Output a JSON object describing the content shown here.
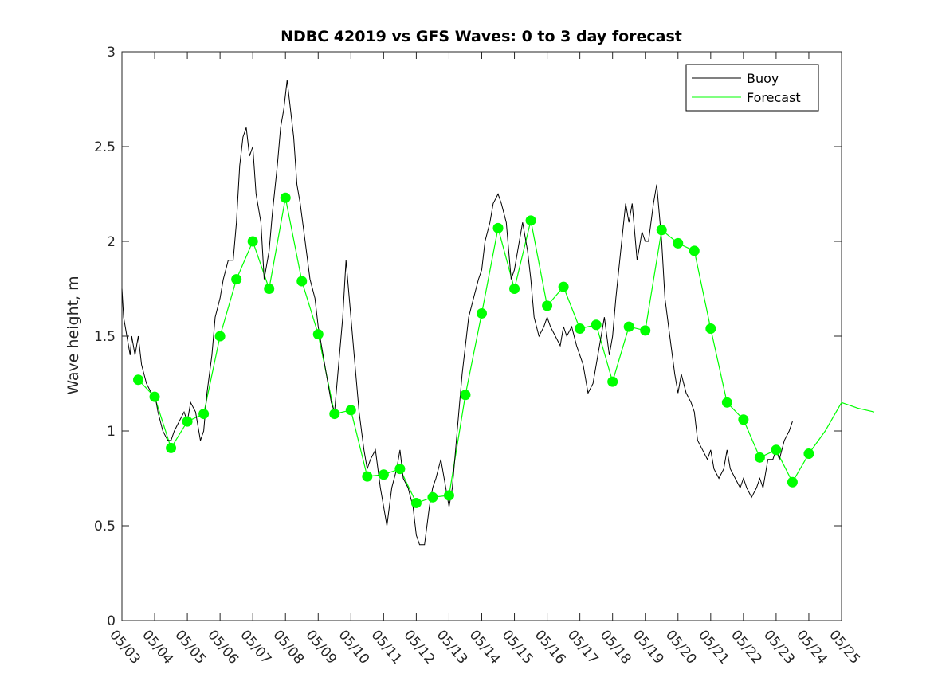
{
  "chart_data": {
    "type": "line",
    "title": "NDBC 42019 vs GFS Waves: 0 to 3 day forecast",
    "xlabel": "",
    "ylabel": "Wave height, m",
    "ylim": [
      0,
      3
    ],
    "yticks": [
      "0",
      "0.5",
      "1",
      "1.5",
      "2",
      "2.5",
      "3"
    ],
    "xticks": [
      "05/03",
      "05/04",
      "05/05",
      "05/06",
      "05/07",
      "05/08",
      "05/09",
      "05/10",
      "05/11",
      "05/12",
      "05/13",
      "05/14",
      "05/15",
      "05/16",
      "05/17",
      "05/18",
      "05/19",
      "05/20",
      "05/21",
      "05/22",
      "05/23",
      "05/24",
      "05/25"
    ],
    "x_unit": "days since 05/03",
    "legend": {
      "position": "top-right",
      "entries": [
        "Buoy",
        "Forecast"
      ]
    },
    "colors": {
      "buoy": "#000000",
      "forecast": "#00ff00"
    },
    "series": [
      {
        "name": "Buoy",
        "points": [
          [
            0,
            1.75
          ],
          [
            0.05,
            1.6
          ],
          [
            0.15,
            1.5
          ],
          [
            0.25,
            1.4
          ],
          [
            0.3,
            1.5
          ],
          [
            0.4,
            1.4
          ],
          [
            0.5,
            1.5
          ],
          [
            0.6,
            1.35
          ],
          [
            0.75,
            1.25
          ],
          [
            0.9,
            1.2
          ],
          [
            1.0,
            1.2
          ],
          [
            1.1,
            1.1
          ],
          [
            1.25,
            1.0
          ],
          [
            1.4,
            0.95
          ],
          [
            1.5,
            0.95
          ],
          [
            1.6,
            1.0
          ],
          [
            1.75,
            1.05
          ],
          [
            1.9,
            1.1
          ],
          [
            2.0,
            1.05
          ],
          [
            2.1,
            1.15
          ],
          [
            2.25,
            1.1
          ],
          [
            2.4,
            0.95
          ],
          [
            2.5,
            1.0
          ],
          [
            2.6,
            1.2
          ],
          [
            2.75,
            1.4
          ],
          [
            2.85,
            1.6
          ],
          [
            3.0,
            1.7
          ],
          [
            3.1,
            1.8
          ],
          [
            3.25,
            1.9
          ],
          [
            3.4,
            1.9
          ],
          [
            3.5,
            2.1
          ],
          [
            3.6,
            2.4
          ],
          [
            3.7,
            2.55
          ],
          [
            3.8,
            2.6
          ],
          [
            3.9,
            2.45
          ],
          [
            4.0,
            2.5
          ],
          [
            4.1,
            2.25
          ],
          [
            4.25,
            2.1
          ],
          [
            4.35,
            1.8
          ],
          [
            4.5,
            1.95
          ],
          [
            4.6,
            2.15
          ],
          [
            4.75,
            2.4
          ],
          [
            4.85,
            2.6
          ],
          [
            4.95,
            2.7
          ],
          [
            5.05,
            2.85
          ],
          [
            5.15,
            2.7
          ],
          [
            5.25,
            2.55
          ],
          [
            5.35,
            2.3
          ],
          [
            5.45,
            2.2
          ],
          [
            5.6,
            2.0
          ],
          [
            5.75,
            1.8
          ],
          [
            5.9,
            1.7
          ],
          [
            6.0,
            1.55
          ],
          [
            6.1,
            1.45
          ],
          [
            6.25,
            1.3
          ],
          [
            6.4,
            1.15
          ],
          [
            6.5,
            1.1
          ],
          [
            6.6,
            1.3
          ],
          [
            6.75,
            1.6
          ],
          [
            6.85,
            1.9
          ],
          [
            6.95,
            1.7
          ],
          [
            7.1,
            1.4
          ],
          [
            7.25,
            1.1
          ],
          [
            7.4,
            0.9
          ],
          [
            7.5,
            0.8
          ],
          [
            7.6,
            0.85
          ],
          [
            7.75,
            0.9
          ],
          [
            7.9,
            0.7
          ],
          [
            8.0,
            0.6
          ],
          [
            8.1,
            0.5
          ],
          [
            8.25,
            0.7
          ],
          [
            8.4,
            0.8
          ],
          [
            8.5,
            0.9
          ],
          [
            8.6,
            0.75
          ],
          [
            8.75,
            0.7
          ],
          [
            8.9,
            0.6
          ],
          [
            9.0,
            0.45
          ],
          [
            9.1,
            0.4
          ],
          [
            9.25,
            0.4
          ],
          [
            9.4,
            0.6
          ],
          [
            9.5,
            0.7
          ],
          [
            9.6,
            0.75
          ],
          [
            9.75,
            0.85
          ],
          [
            9.9,
            0.7
          ],
          [
            10.0,
            0.6
          ],
          [
            10.1,
            0.7
          ],
          [
            10.25,
            1.0
          ],
          [
            10.4,
            1.3
          ],
          [
            10.5,
            1.45
          ],
          [
            10.6,
            1.6
          ],
          [
            10.75,
            1.7
          ],
          [
            10.9,
            1.8
          ],
          [
            11.0,
            1.85
          ],
          [
            11.1,
            2.0
          ],
          [
            11.25,
            2.1
          ],
          [
            11.35,
            2.2
          ],
          [
            11.5,
            2.25
          ],
          [
            11.6,
            2.2
          ],
          [
            11.75,
            2.1
          ],
          [
            11.9,
            1.8
          ],
          [
            12.0,
            1.85
          ],
          [
            12.1,
            1.95
          ],
          [
            12.25,
            2.1
          ],
          [
            12.4,
            1.95
          ],
          [
            12.5,
            1.8
          ],
          [
            12.6,
            1.6
          ],
          [
            12.75,
            1.5
          ],
          [
            12.9,
            1.55
          ],
          [
            13.0,
            1.6
          ],
          [
            13.1,
            1.55
          ],
          [
            13.25,
            1.5
          ],
          [
            13.4,
            1.45
          ],
          [
            13.5,
            1.55
          ],
          [
            13.6,
            1.5
          ],
          [
            13.75,
            1.55
          ],
          [
            13.9,
            1.45
          ],
          [
            14.0,
            1.4
          ],
          [
            14.1,
            1.35
          ],
          [
            14.25,
            1.2
          ],
          [
            14.4,
            1.25
          ],
          [
            14.5,
            1.35
          ],
          [
            14.6,
            1.45
          ],
          [
            14.75,
            1.6
          ],
          [
            14.9,
            1.4
          ],
          [
            15.0,
            1.5
          ],
          [
            15.1,
            1.7
          ],
          [
            15.25,
            1.95
          ],
          [
            15.4,
            2.2
          ],
          [
            15.5,
            2.1
          ],
          [
            15.6,
            2.2
          ],
          [
            15.75,
            1.9
          ],
          [
            15.9,
            2.05
          ],
          [
            16.0,
            2.0
          ],
          [
            16.1,
            2.0
          ],
          [
            16.25,
            2.2
          ],
          [
            16.35,
            2.3
          ],
          [
            16.5,
            2.0
          ],
          [
            16.6,
            1.7
          ],
          [
            16.75,
            1.5
          ],
          [
            16.9,
            1.3
          ],
          [
            17.0,
            1.2
          ],
          [
            17.1,
            1.3
          ],
          [
            17.25,
            1.2
          ],
          [
            17.4,
            1.15
          ],
          [
            17.5,
            1.1
          ],
          [
            17.6,
            0.95
          ],
          [
            17.75,
            0.9
          ],
          [
            17.9,
            0.85
          ],
          [
            18.0,
            0.9
          ],
          [
            18.1,
            0.8
          ],
          [
            18.25,
            0.75
          ],
          [
            18.4,
            0.8
          ],
          [
            18.5,
            0.9
          ],
          [
            18.6,
            0.8
          ],
          [
            18.75,
            0.75
          ],
          [
            18.9,
            0.7
          ],
          [
            19.0,
            0.75
          ],
          [
            19.1,
            0.7
          ],
          [
            19.25,
            0.65
          ],
          [
            19.4,
            0.7
          ],
          [
            19.5,
            0.75
          ],
          [
            19.6,
            0.7
          ],
          [
            19.75,
            0.85
          ],
          [
            19.9,
            0.85
          ],
          [
            20.0,
            0.9
          ],
          [
            20.1,
            0.85
          ],
          [
            20.25,
            0.95
          ],
          [
            20.4,
            1.0
          ],
          [
            20.5,
            1.05
          ]
        ]
      },
      {
        "name": "Forecast",
        "points": [
          [
            0.5,
            1.27
          ],
          [
            1.0,
            1.18
          ],
          [
            1.5,
            0.91
          ],
          [
            2.0,
            1.05
          ],
          [
            2.5,
            1.09
          ],
          [
            3.0,
            1.5
          ],
          [
            3.5,
            1.8
          ],
          [
            4.0,
            2.0
          ],
          [
            4.5,
            1.75
          ],
          [
            5.0,
            2.23
          ],
          [
            5.5,
            1.79
          ],
          [
            6.0,
            1.51
          ],
          [
            6.5,
            1.09
          ],
          [
            7.0,
            1.11
          ],
          [
            7.5,
            0.76
          ],
          [
            8.0,
            0.77
          ],
          [
            8.5,
            0.8
          ],
          [
            9.0,
            0.62
          ],
          [
            9.5,
            0.65
          ],
          [
            10.0,
            0.66
          ],
          [
            10.5,
            1.19
          ],
          [
            11.0,
            1.62
          ],
          [
            11.5,
            2.07
          ],
          [
            12.0,
            1.75
          ],
          [
            12.5,
            2.11
          ],
          [
            13.0,
            1.66
          ],
          [
            13.5,
            1.76
          ],
          [
            14.0,
            1.54
          ],
          [
            14.5,
            1.56
          ],
          [
            15.0,
            1.26
          ],
          [
            15.5,
            1.55
          ],
          [
            16.0,
            1.53
          ],
          [
            16.5,
            2.06
          ],
          [
            17.0,
            1.99
          ],
          [
            17.5,
            1.95
          ],
          [
            18.0,
            1.54
          ],
          [
            18.5,
            1.15
          ],
          [
            19.0,
            1.06
          ],
          [
            19.5,
            0.86
          ],
          [
            20.0,
            0.9
          ],
          [
            20.5,
            0.73
          ],
          [
            21.0,
            0.88
          ],
          [
            21.5,
            1.0
          ],
          [
            22.0,
            1.15
          ],
          [
            22.5,
            1.12
          ],
          [
            23.0,
            1.1
          ]
        ]
      }
    ],
    "markers": [
      [
        0.5,
        1.27
      ],
      [
        1.0,
        1.18
      ],
      [
        1.5,
        0.91
      ],
      [
        2.0,
        1.05
      ],
      [
        2.5,
        1.09
      ],
      [
        3.0,
        1.5
      ],
      [
        3.5,
        1.8
      ],
      [
        4.0,
        2.0
      ],
      [
        4.5,
        1.75
      ],
      [
        5.0,
        2.23
      ],
      [
        5.5,
        1.79
      ],
      [
        6.0,
        1.51
      ],
      [
        6.5,
        1.09
      ],
      [
        7.0,
        1.11
      ],
      [
        7.5,
        0.76
      ],
      [
        8.0,
        0.77
      ],
      [
        8.5,
        0.8
      ],
      [
        9.0,
        0.62
      ],
      [
        9.5,
        0.65
      ],
      [
        10.0,
        0.66
      ],
      [
        10.5,
        1.19
      ],
      [
        11.0,
        1.62
      ],
      [
        11.5,
        2.07
      ],
      [
        12.0,
        1.75
      ],
      [
        12.5,
        2.11
      ],
      [
        13.0,
        1.66
      ],
      [
        13.5,
        1.76
      ],
      [
        14.0,
        1.54
      ],
      [
        14.5,
        1.56
      ],
      [
        15.0,
        1.26
      ],
      [
        15.5,
        1.55
      ],
      [
        16.0,
        1.53
      ],
      [
        16.5,
        2.06
      ],
      [
        17.0,
        1.99
      ],
      [
        17.5,
        1.95
      ],
      [
        18.0,
        1.54
      ],
      [
        18.5,
        1.15
      ],
      [
        19.0,
        1.06
      ],
      [
        19.5,
        0.86
      ],
      [
        20.0,
        0.9
      ],
      [
        20.5,
        0.73
      ],
      [
        21.0,
        0.88
      ]
    ]
  }
}
